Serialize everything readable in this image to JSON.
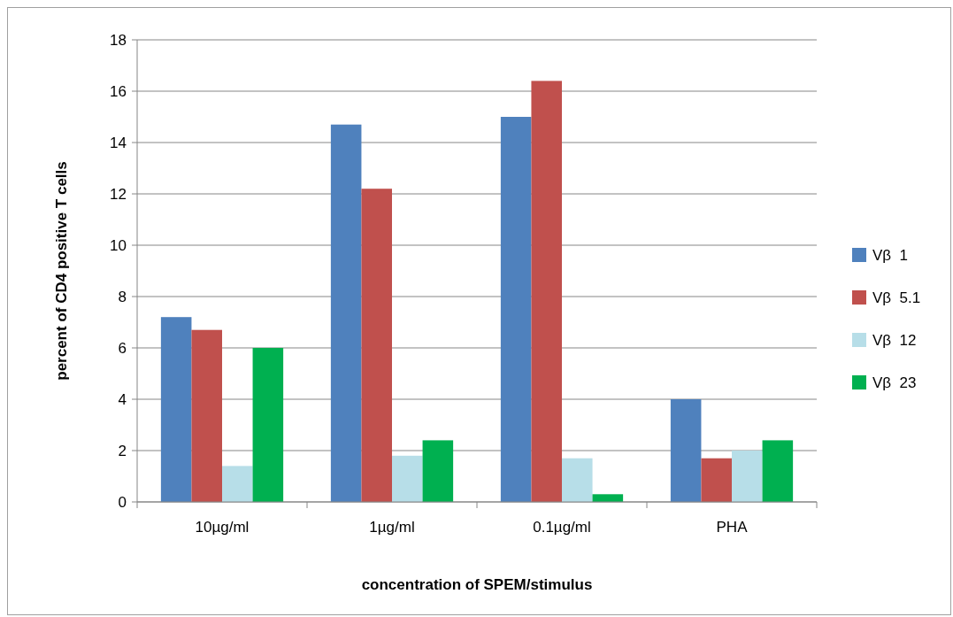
{
  "chart_data": {
    "type": "bar",
    "xlabel": "concentration of SPEM/stimulus",
    "ylabel": "percent of CD4 positive T cells",
    "categories": [
      "10µg/ml",
      "1µg/ml",
      "0.1µg/ml",
      "PHA"
    ],
    "series": [
      {
        "name": "Vβ  1",
        "color": "#4f81bd",
        "values": [
          7.2,
          14.7,
          15.0,
          4.0
        ]
      },
      {
        "name": "Vβ  5.1",
        "color": "#c0504d",
        "values": [
          6.7,
          12.2,
          16.4,
          1.7
        ]
      },
      {
        "name": "Vβ  12",
        "color": "#b7dee8",
        "values": [
          1.4,
          1.8,
          1.7,
          2.0
        ]
      },
      {
        "name": "Vβ  23",
        "color": "#00b050",
        "values": [
          6.0,
          2.4,
          0.3,
          2.4
        ]
      }
    ],
    "ylim": [
      0,
      18
    ],
    "yticks": [
      0,
      2,
      4,
      6,
      8,
      10,
      12,
      14,
      16,
      18
    ],
    "grid": "y",
    "legend": "right"
  }
}
